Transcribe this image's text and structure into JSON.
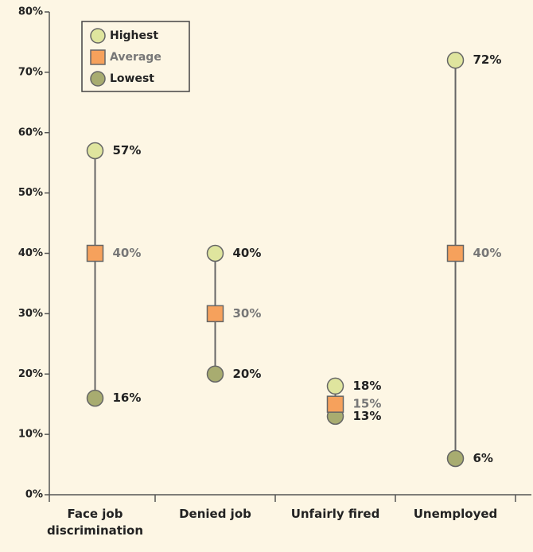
{
  "chart_data": {
    "type": "dot-range",
    "categories": [
      "Face job discrimination",
      "Denied job",
      "Unfairly fired",
      "Unemployed"
    ],
    "series": [
      {
        "name": "Highest",
        "color": "#dfe59e",
        "values": [
          57,
          40,
          18,
          72
        ],
        "value_labels": [
          "57%",
          "40%",
          "18%",
          "72%"
        ]
      },
      {
        "name": "Average",
        "color": "#f6a15c",
        "values": [
          40,
          30,
          15,
          40
        ],
        "value_labels": [
          "40%",
          "30%",
          "15%",
          "40%"
        ]
      },
      {
        "name": "Lowest",
        "color": "#a8ac70",
        "values": [
          16,
          20,
          13,
          6
        ],
        "value_labels": [
          "16%",
          "20%",
          "13%",
          "6%"
        ]
      }
    ],
    "ylim": [
      0,
      80
    ],
    "yticks": [
      {
        "value": 0,
        "label": "0%"
      },
      {
        "value": 10,
        "label": "10%"
      },
      {
        "value": 20,
        "label": "20%"
      },
      {
        "value": 30,
        "label": "30%"
      },
      {
        "value": 40,
        "label": "40%"
      },
      {
        "value": 50,
        "label": "50%"
      },
      {
        "value": 60,
        "label": "60%"
      },
      {
        "value": 70,
        "label": "70%"
      },
      {
        "value": 80,
        "label": "80%"
      }
    ],
    "legend": "top-left"
  }
}
